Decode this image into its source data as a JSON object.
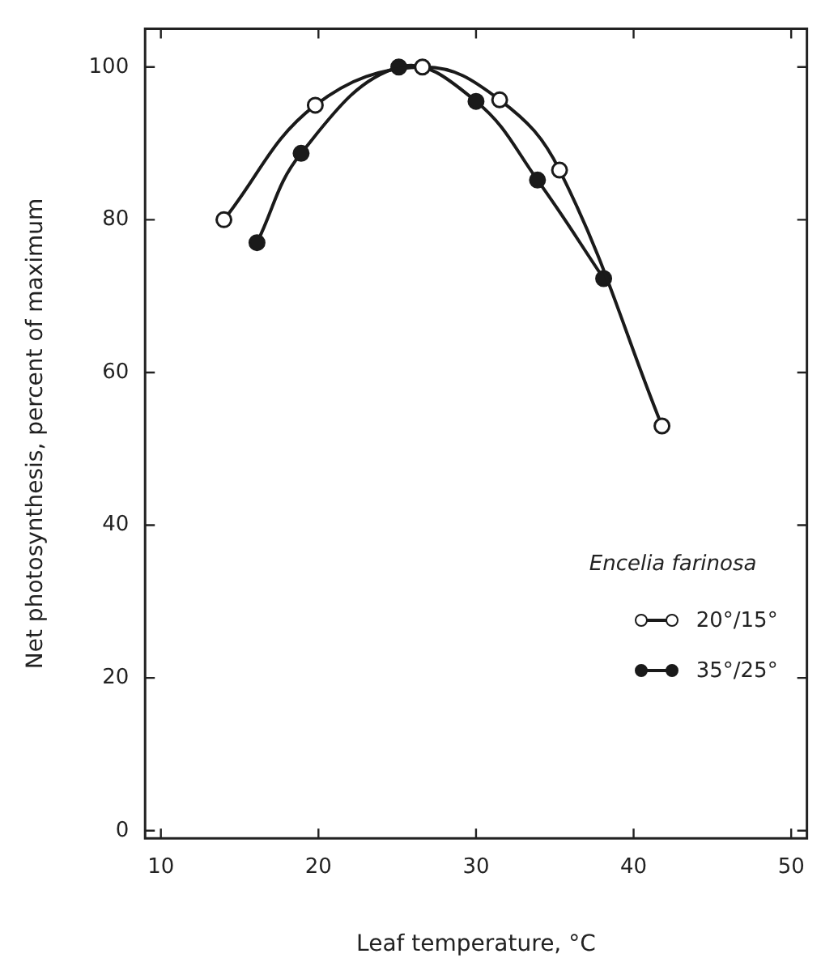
{
  "chart_data": {
    "type": "line",
    "xlabel": "Leaf temperature, °C",
    "ylabel": "Net photosynthesis, percent of maximum",
    "legend_title": "Encelia farinosa",
    "legend": "bottom right",
    "marker": "circle",
    "line_style": "solid",
    "grid": false,
    "xlim": [
      9,
      51
    ],
    "xticks": [
      10,
      20,
      30,
      40,
      50
    ],
    "ylim": [
      -1,
      105
    ],
    "yticks": [
      0,
      20,
      40,
      60,
      80,
      100
    ],
    "series": [
      {
        "name": "20°/15°",
        "color": "#1a1a1a",
        "x": [
          14,
          19.8,
          26.6,
          31.5,
          35.3,
          41.8
        ],
        "values": [
          80,
          95,
          100,
          95.7,
          86.5,
          53
        ]
      },
      {
        "name": "35°/25°",
        "color": "#1a1a1a",
        "x": [
          16.1,
          18.9,
          25.1,
          30,
          33.9,
          38.1
        ],
        "values": [
          77,
          88.7,
          100,
          95.5,
          85.2,
          72.3
        ]
      }
    ]
  }
}
